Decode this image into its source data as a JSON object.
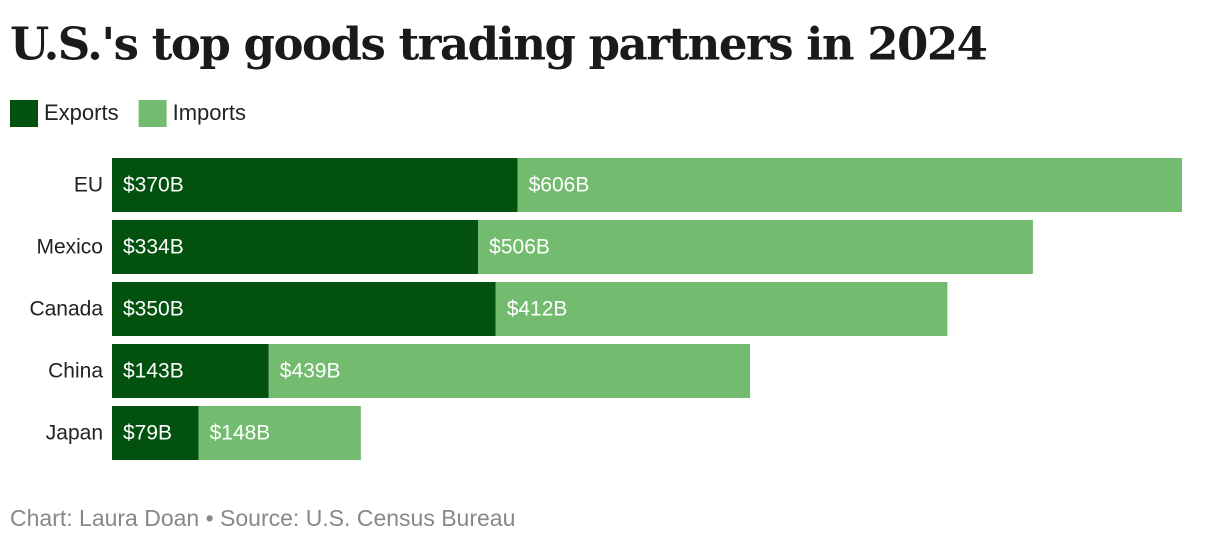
{
  "chart_data": {
    "type": "stacked-bar-horizontal",
    "title": "U.S.'s top goods trading partners in 2024",
    "categories": [
      "EU",
      "Mexico",
      "Canada",
      "China",
      "Japan"
    ],
    "series": [
      {
        "name": "Exports",
        "color": "#02510f",
        "values": [
          370,
          334,
          350,
          143,
          79
        ],
        "value_labels": [
          "$370B",
          "$334B",
          "$350B",
          "$143B",
          "$79B"
        ]
      },
      {
        "name": "Imports",
        "color": "#72bb6f",
        "values": [
          606,
          506,
          412,
          439,
          148
        ],
        "value_labels": [
          "$606B",
          "$506B",
          "$412B",
          "$439B",
          "$148B"
        ]
      }
    ],
    "source": "Chart: Laura Doan • Source: U.S. Census Bureau"
  }
}
